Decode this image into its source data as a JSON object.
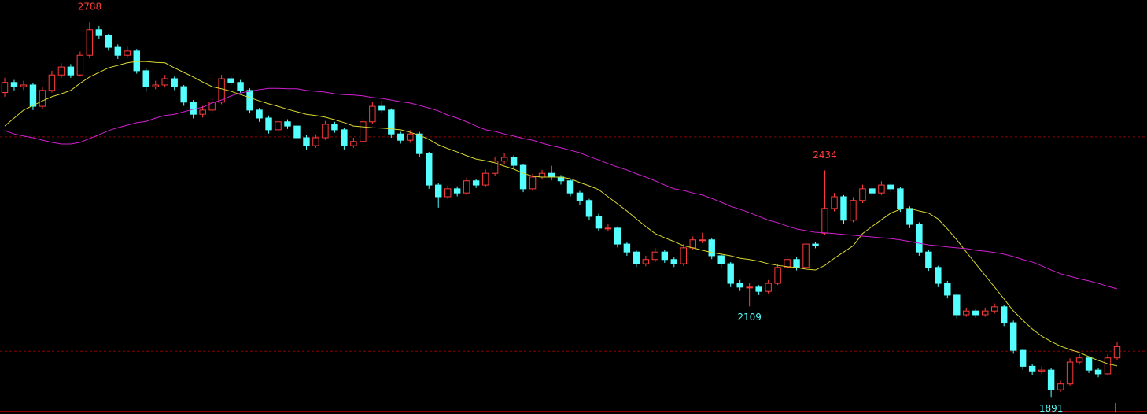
{
  "chart_data": {
    "type": "candlestick",
    "ylim": [
      1852,
      2841
    ],
    "up_color": "#ff3c3c",
    "down_color": "#54ffff",
    "open": [
      2620,
      2644,
      2634,
      2638,
      2587,
      2625,
      2662,
      2681,
      2662,
      2709,
      2770,
      2756,
      2728,
      2709,
      2719,
      2672,
      2634,
      2638,
      2653,
      2634,
      2597,
      2568,
      2578,
      2597,
      2653,
      2644,
      2625,
      2578,
      2559,
      2531,
      2550,
      2540,
      2512,
      2493,
      2512,
      2544,
      2531,
      2493,
      2503,
      2550,
      2587,
      2578,
      2521,
      2506,
      2521,
      2474,
      2399,
      2371,
      2390,
      2380,
      2409,
      2399,
      2427,
      2456,
      2465,
      2446,
      2390,
      2418,
      2427,
      2418,
      2409,
      2380,
      2362,
      2324,
      2296,
      2296,
      2258,
      2239,
      2211,
      2221,
      2239,
      2221,
      2211,
      2249,
      2268,
      2268,
      2230,
      2211,
      2164,
      2155,
      2155,
      2145,
      2164,
      2202,
      2221,
      2202,
      2258,
      2284,
      2343,
      2371,
      2315,
      2362,
      2390,
      2380,
      2399,
      2390,
      2343,
      2305,
      2239,
      2202,
      2164,
      2136,
      2089,
      2098,
      2089,
      2098,
      2108,
      2070,
      2004,
      1966,
      1953,
      1957,
      1910,
      1924,
      1976,
      1986,
      1957,
      1948,
      1986
    ],
    "high": [
      2655,
      2650,
      2648,
      2642,
      2633,
      2672,
      2690,
      2688,
      2718,
      2788,
      2779,
      2760,
      2735,
      2730,
      2724,
      2678,
      2648,
      2662,
      2658,
      2638,
      2602,
      2588,
      2605,
      2662,
      2660,
      2650,
      2630,
      2583,
      2565,
      2560,
      2556,
      2545,
      2518,
      2520,
      2552,
      2550,
      2536,
      2512,
      2558,
      2598,
      2600,
      2582,
      2526,
      2530,
      2526,
      2478,
      2404,
      2398,
      2396,
      2417,
      2414,
      2436,
      2465,
      2476,
      2470,
      2450,
      2426,
      2435,
      2445,
      2423,
      2414,
      2385,
      2366,
      2330,
      2305,
      2300,
      2262,
      2244,
      2230,
      2248,
      2244,
      2226,
      2258,
      2276,
      2285,
      2272,
      2235,
      2215,
      2172,
      2165,
      2160,
      2172,
      2210,
      2230,
      2226,
      2266,
      2262,
      2434,
      2380,
      2375,
      2370,
      2400,
      2398,
      2408,
      2404,
      2394,
      2348,
      2310,
      2244,
      2206,
      2170,
      2140,
      2106,
      2104,
      2106,
      2116,
      2112,
      2075,
      2008,
      1972,
      1966,
      1962,
      1932,
      1985,
      1995,
      1990,
      1962,
      1994,
      2025
    ],
    "low": [
      2610,
      2625,
      2626,
      2578,
      2580,
      2620,
      2655,
      2655,
      2658,
      2702,
      2748,
      2720,
      2700,
      2702,
      2665,
      2622,
      2628,
      2632,
      2626,
      2588,
      2558,
      2560,
      2572,
      2592,
      2638,
      2618,
      2570,
      2550,
      2522,
      2525,
      2533,
      2505,
      2484,
      2488,
      2507,
      2524,
      2484,
      2488,
      2498,
      2545,
      2570,
      2512,
      2498,
      2500,
      2465,
      2390,
      2345,
      2365,
      2372,
      2375,
      2392,
      2394,
      2420,
      2450,
      2440,
      2382,
      2385,
      2412,
      2410,
      2400,
      2372,
      2352,
      2316,
      2288,
      2288,
      2250,
      2230,
      2203,
      2205,
      2215,
      2213,
      2203,
      2206,
      2244,
      2260,
      2222,
      2202,
      2155,
      2146,
      2109,
      2136,
      2140,
      2160,
      2196,
      2195,
      2198,
      2248,
      2280,
      2336,
      2306,
      2310,
      2356,
      2372,
      2375,
      2382,
      2335,
      2296,
      2230,
      2194,
      2155,
      2128,
      2080,
      2084,
      2082,
      2084,
      2092,
      2062,
      1996,
      1958,
      1945,
      1948,
      1891,
      1905,
      1920,
      1970,
      1950,
      1940,
      1944,
      1980
    ],
    "close": [
      2644,
      2634,
      2638,
      2587,
      2625,
      2662,
      2681,
      2662,
      2709,
      2770,
      2756,
      2728,
      2709,
      2719,
      2672,
      2634,
      2638,
      2653,
      2634,
      2597,
      2568,
      2578,
      2597,
      2653,
      2644,
      2625,
      2578,
      2559,
      2531,
      2550,
      2540,
      2512,
      2493,
      2512,
      2544,
      2531,
      2493,
      2503,
      2550,
      2587,
      2578,
      2521,
      2506,
      2521,
      2474,
      2399,
      2371,
      2390,
      2380,
      2409,
      2399,
      2427,
      2456,
      2465,
      2446,
      2390,
      2418,
      2427,
      2418,
      2409,
      2380,
      2362,
      2324,
      2296,
      2296,
      2258,
      2239,
      2211,
      2221,
      2239,
      2221,
      2211,
      2249,
      2268,
      2268,
      2230,
      2211,
      2164,
      2155,
      2155,
      2145,
      2164,
      2202,
      2221,
      2202,
      2258,
      2254,
      2343,
      2371,
      2315,
      2362,
      2390,
      2380,
      2399,
      2390,
      2343,
      2305,
      2239,
      2202,
      2164,
      2136,
      2089,
      2098,
      2089,
      2098,
      2108,
      2070,
      2004,
      1966,
      1953,
      1957,
      1910,
      1924,
      1976,
      1986,
      1957,
      1948,
      1986,
      2013
    ],
    "series": [
      {
        "color": "#d8d830",
        "values": [
          2540,
          2559,
          2578,
          2589,
          2600,
          2610,
          2617,
          2625,
          2642,
          2657,
          2668,
          2679,
          2685,
          2691,
          2694,
          2694,
          2692,
          2691,
          2679,
          2668,
          2657,
          2645,
          2634,
          2629,
          2623,
          2615,
          2608,
          2600,
          2593,
          2587,
          2580,
          2574,
          2568,
          2565,
          2561,
          2555,
          2548,
          2540,
          2538,
          2536,
          2535,
          2533,
          2531,
          2525,
          2518,
          2508,
          2495,
          2486,
          2478,
          2469,
          2461,
          2457,
          2452,
          2444,
          2437,
          2427,
          2420,
          2418,
          2418,
          2418,
          2414,
          2405,
          2397,
          2388,
          2371,
          2354,
          2337,
          2318,
          2300,
          2283,
          2273,
          2264,
          2254,
          2249,
          2243,
          2238,
          2234,
          2230,
          2224,
          2221,
          2217,
          2211,
          2207,
          2204,
          2202,
          2198,
          2196,
          2207,
          2224,
          2239,
          2254,
          2283,
          2300,
          2316,
          2332,
          2341,
          2343,
          2337,
          2332,
          2318,
          2294,
          2268,
          2239,
          2211,
          2183,
          2155,
          2127,
          2098,
          2076,
          2055,
          2038,
          2025,
          2014,
          2006,
          1999,
          1989,
          1980,
          1972,
          1967
        ]
      },
      {
        "color": "#d020d0",
        "values": [
          2529,
          2521,
          2516,
          2512,
          2506,
          2501,
          2497,
          2497,
          2501,
          2510,
          2519,
          2529,
          2536,
          2542,
          2548,
          2551,
          2559,
          2565,
          2568,
          2574,
          2580,
          2585,
          2595,
          2602,
          2612,
          2619,
          2623,
          2627,
          2630,
          2630,
          2629,
          2629,
          2625,
          2623,
          2621,
          2617,
          2615,
          2614,
          2612,
          2608,
          2606,
          2602,
          2598,
          2595,
          2589,
          2583,
          2576,
          2566,
          2559,
          2550,
          2540,
          2531,
          2527,
          2521,
          2516,
          2510,
          2506,
          2499,
          2493,
          2488,
          2482,
          2476,
          2467,
          2459,
          2450,
          2442,
          2435,
          2426,
          2418,
          2409,
          2399,
          2390,
          2386,
          2380,
          2375,
          2367,
          2358,
          2348,
          2341,
          2333,
          2324,
          2315,
          2309,
          2301,
          2294,
          2290,
          2286,
          2285,
          2283,
          2281,
          2279,
          2277,
          2275,
          2273,
          2271,
          2268,
          2264,
          2260,
          2256,
          2254,
          2251,
          2249,
          2247,
          2243,
          2241,
          2238,
          2234,
          2228,
          2221,
          2215,
          2206,
          2196,
          2187,
          2181,
          2175,
          2170,
          2164,
          2157,
          2151
        ]
      }
    ],
    "hlines": [
      2514,
      2002
    ],
    "annotations": [
      {
        "at": "high",
        "index": 9
      },
      {
        "at": "high",
        "index": 87
      },
      {
        "at": "low",
        "index": 79
      },
      {
        "at": "low",
        "index": 111
      }
    ]
  }
}
